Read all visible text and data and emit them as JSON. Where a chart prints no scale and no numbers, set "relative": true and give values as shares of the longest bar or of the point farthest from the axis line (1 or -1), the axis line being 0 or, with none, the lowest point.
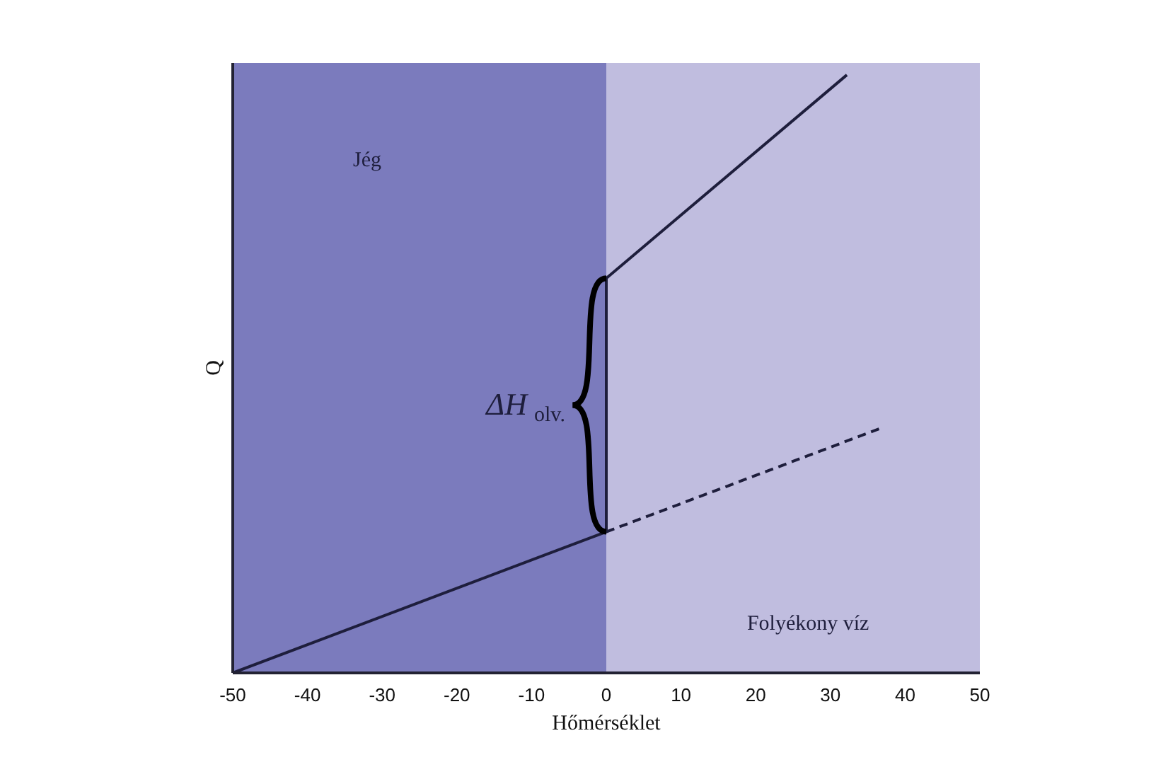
{
  "chart_data": {
    "type": "line",
    "relative": true,
    "xlabel": "Hőmérséklet",
    "ylabel": "Q",
    "xlim": [
      -50,
      50
    ],
    "xticks": [
      -50,
      -40,
      -30,
      -20,
      -10,
      0,
      10,
      20,
      30,
      40,
      50
    ],
    "tick_labels": "x",
    "series": [
      {
        "x": [
          -50,
          0,
          0,
          32.2
        ],
        "values": [
          0,
          0.236,
          0.66,
          1
        ],
        "color": "#1e1e3c",
        "line_style": "solid"
      },
      {
        "x": [
          0,
          36.9
        ],
        "values": [
          0.236,
          0.41
        ],
        "color": "#1e1e3c",
        "line_style": "dashed"
      }
    ],
    "bands": [
      {
        "axis": "x",
        "from": -50,
        "to": 0,
        "label": "Jég",
        "color": "#7b7bbd"
      },
      {
        "axis": "x",
        "from": 0,
        "to": 50,
        "label": "Folyékony víz",
        "color": "#c0bddf"
      }
    ],
    "annotations": [
      {
        "text": "ΔH$_{olv.}$",
        "x": 0,
        "y": 0.45
      }
    ]
  }
}
